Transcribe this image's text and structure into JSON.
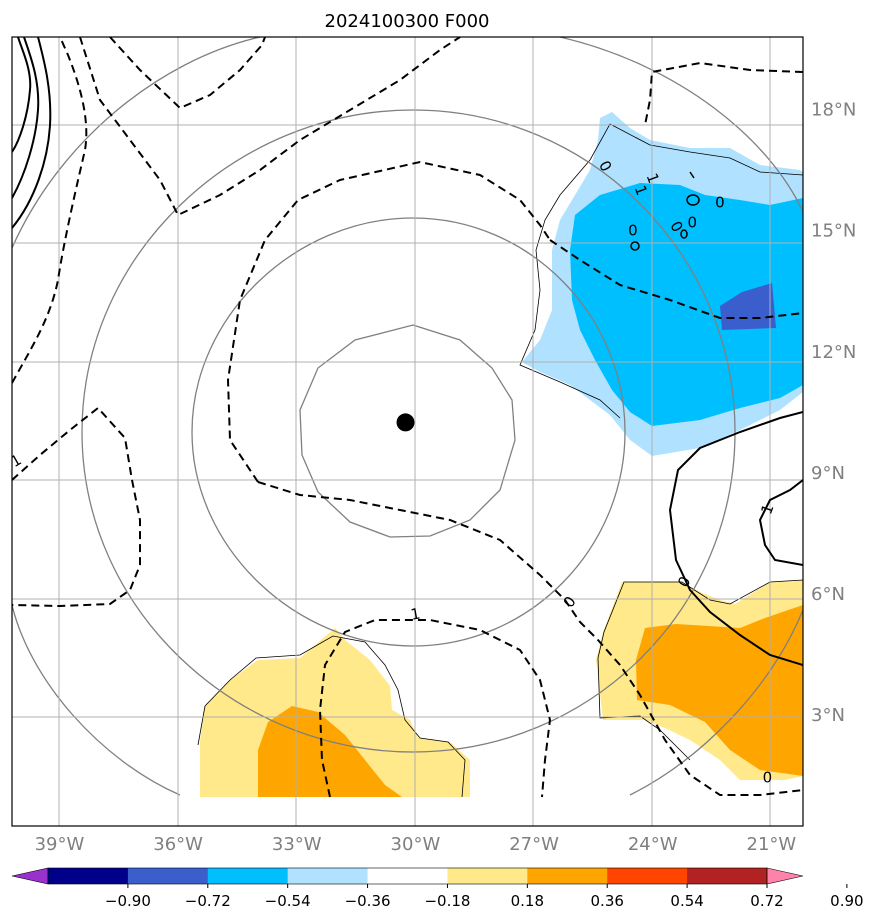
{
  "title": "2024100300 F000",
  "map": {
    "lon_range": [
      -40.2,
      -20.2
    ],
    "lat_range": [
      0.25,
      19.8
    ],
    "lon_ticks": [
      {
        "value": -39,
        "label": "39°W"
      },
      {
        "value": -36,
        "label": "36°W"
      },
      {
        "value": -33,
        "label": "33°W"
      },
      {
        "value": -30,
        "label": "30°W"
      },
      {
        "value": -27,
        "label": "27°W"
      },
      {
        "value": -24,
        "label": "24°W"
      },
      {
        "value": -21,
        "label": "21°W"
      }
    ],
    "lat_ticks": [
      {
        "value": 3,
        "label": "3°N"
      },
      {
        "value": 6,
        "label": "6°N"
      },
      {
        "value": 9,
        "label": "9°N"
      },
      {
        "value": 12,
        "label": "12°N"
      },
      {
        "value": 15,
        "label": "15°N"
      },
      {
        "value": 18,
        "label": "18°N"
      }
    ],
    "center_marker": {
      "lon": -30.25,
      "lat": 10.25
    },
    "grid": true,
    "range_rings": "concentric gray circles around center marker"
  },
  "contour_labels": [
    {
      "text": "0",
      "lon": -25.2,
      "lat": 16.6,
      "rot": 60
    },
    {
      "text": "1",
      "lon": -24.0,
      "lat": 16.3,
      "rot": 70
    },
    {
      "text": "1",
      "lon": -24.3,
      "lat": 16.0,
      "rot": 70
    },
    {
      "text": "0",
      "lon": -22.3,
      "lat": 15.7,
      "rot": 0
    },
    {
      "text": "0",
      "lon": -24.5,
      "lat": 15.0,
      "rot": 0
    },
    {
      "text": "0",
      "lon": -23.4,
      "lat": 15.1,
      "rot": 60
    },
    {
      "text": "0",
      "lon": -23.0,
      "lat": 15.2,
      "rot": 0
    },
    {
      "text": "1",
      "lon": -21.1,
      "lat": 8.1,
      "rot": -70
    },
    {
      "text": "0",
      "lon": -23.2,
      "lat": 6.3,
      "rot": -60
    },
    {
      "text": "0",
      "lon": -26.1,
      "lat": 5.8,
      "rot": -55
    },
    {
      "text": "1",
      "lon": -30.0,
      "lat": 5.5,
      "rot": -10
    },
    {
      "text": "0",
      "lon": -21.1,
      "lat": 1.45,
      "rot": 0
    },
    {
      "text": "1",
      "lon": -40.1,
      "lat": 9.3,
      "rot": -30
    }
  ],
  "colorbar": {
    "colors": [
      "#9932CC",
      "#00008B",
      "#3A5FCD",
      "#00BFFF",
      "#B0E2FF",
      "#FFFFFF",
      "#FFE98A",
      "#FFA500",
      "#FF4500",
      "#B22222",
      "#FF82AB"
    ],
    "tick_labels": [
      "−0.90",
      "−0.72",
      "−0.54",
      "−0.36",
      "−0.18",
      "0.18",
      "0.36",
      "0.54",
      "0.72",
      "0.90"
    ]
  }
}
